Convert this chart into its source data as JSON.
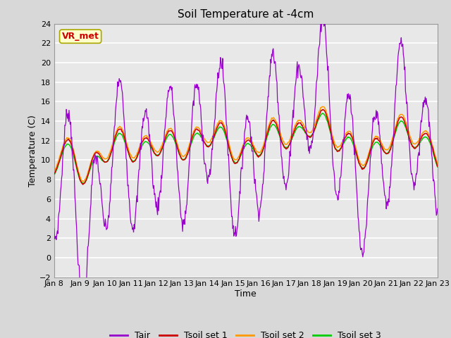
{
  "title": "Soil Temperature at -4cm",
  "xlabel": "Time",
  "ylabel": "Temperature (C)",
  "ylim": [
    -2,
    24
  ],
  "yticks": [
    -2,
    0,
    2,
    4,
    6,
    8,
    10,
    12,
    14,
    16,
    18,
    20,
    22,
    24
  ],
  "xlim": [
    0,
    15
  ],
  "xtick_labels": [
    "Jan 8",
    "Jan 9",
    "Jan 10",
    "Jan 11",
    "Jan 12",
    "Jan 13",
    "Jan 14",
    "Jan 15",
    "Jan 16",
    "Jan 17",
    "Jan 18",
    "Jan 19",
    "Jan 20",
    "Jan 21",
    "Jan 22",
    "Jan 23"
  ],
  "line_colors": {
    "Tair": "#9900cc",
    "Tsoil_set1": "#cc0000",
    "Tsoil_set2": "#ff9900",
    "Tsoil_set3": "#00cc00"
  },
  "legend_labels": [
    "Tair",
    "Tsoil set 1",
    "Tsoil set 2",
    "Tsoil set 3"
  ],
  "annotation_text": "VR_met",
  "annotation_color": "#cc0000",
  "annotation_bg": "#ffffcc",
  "fig_bg_color": "#d8d8d8",
  "plot_bg": "#e8e8e8",
  "title_fontsize": 11,
  "label_fontsize": 9,
  "tick_fontsize": 8
}
